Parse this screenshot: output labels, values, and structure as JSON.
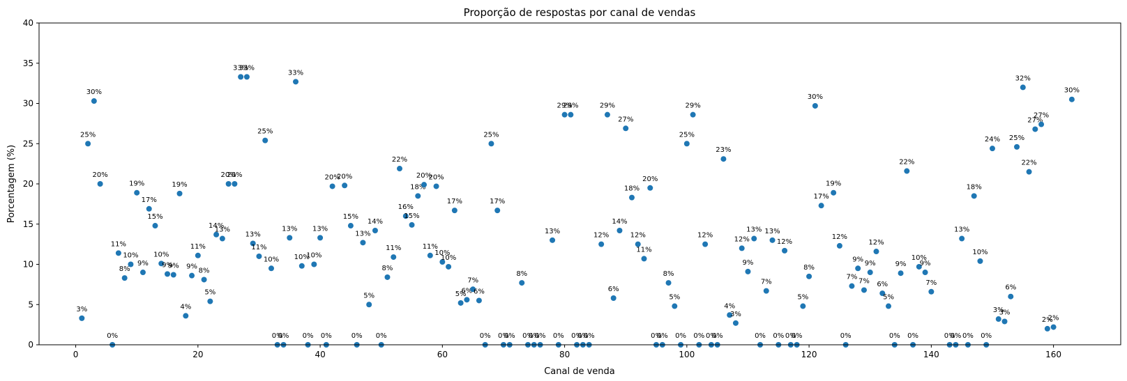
{
  "chart_data": {
    "type": "scatter",
    "title": "Proporção de respostas por canal de vendas",
    "xlabel": "Canal de venda",
    "ylabel": "Porcentagem (%)",
    "xlim": [
      -6,
      171
    ],
    "ylim": [
      0,
      40
    ],
    "xticks": [
      0,
      20,
      40,
      60,
      80,
      100,
      120,
      140,
      160
    ],
    "yticks": [
      0,
      5,
      10,
      15,
      20,
      25,
      30,
      35,
      40
    ],
    "grid": false,
    "color": "#1f77b4",
    "points": [
      {
        "x": 1,
        "y": 3.3,
        "label": "3%"
      },
      {
        "x": 2,
        "y": 25,
        "label": "25%"
      },
      {
        "x": 3,
        "y": 30.3,
        "label": "30%"
      },
      {
        "x": 4,
        "y": 20,
        "label": "20%"
      },
      {
        "x": 6,
        "y": 0,
        "label": "0%"
      },
      {
        "x": 7,
        "y": 11.4,
        "label": "11%"
      },
      {
        "x": 8,
        "y": 8.3,
        "label": "8%"
      },
      {
        "x": 9,
        "y": 10,
        "label": "10%"
      },
      {
        "x": 10,
        "y": 18.9,
        "label": "19%"
      },
      {
        "x": 11,
        "y": 9,
        "label": "9%"
      },
      {
        "x": 12,
        "y": 16.9,
        "label": "17%"
      },
      {
        "x": 13,
        "y": 14.8,
        "label": "15%"
      },
      {
        "x": 14,
        "y": 10.1,
        "label": "10%"
      },
      {
        "x": 15,
        "y": 8.8,
        "label": "9%"
      },
      {
        "x": 16,
        "y": 8.7,
        "label": "9%"
      },
      {
        "x": 17,
        "y": 18.8,
        "label": "19%"
      },
      {
        "x": 18,
        "y": 3.6,
        "label": "4%"
      },
      {
        "x": 19,
        "y": 8.6,
        "label": "9%"
      },
      {
        "x": 20,
        "y": 11.1,
        "label": "11%"
      },
      {
        "x": 21,
        "y": 8.1,
        "label": "8%"
      },
      {
        "x": 22,
        "y": 5.4,
        "label": "5%"
      },
      {
        "x": 23,
        "y": 13.7,
        "label": "14%"
      },
      {
        "x": 24,
        "y": 13.2,
        "label": "13%"
      },
      {
        "x": 25,
        "y": 20,
        "label": "20%"
      },
      {
        "x": 26,
        "y": 20,
        "label": "20%"
      },
      {
        "x": 27,
        "y": 33.3,
        "label": "33%"
      },
      {
        "x": 28,
        "y": 33.3,
        "label": "33%"
      },
      {
        "x": 29,
        "y": 12.6,
        "label": "13%"
      },
      {
        "x": 30,
        "y": 11,
        "label": "11%"
      },
      {
        "x": 31,
        "y": 25.4,
        "label": "25%"
      },
      {
        "x": 32,
        "y": 9.5,
        "label": "10%"
      },
      {
        "x": 33,
        "y": 0,
        "label": "0%"
      },
      {
        "x": 34,
        "y": 0,
        "label": "0%"
      },
      {
        "x": 35,
        "y": 13.3,
        "label": "13%"
      },
      {
        "x": 36,
        "y": 32.7,
        "label": "33%"
      },
      {
        "x": 37,
        "y": 9.8,
        "label": "10%"
      },
      {
        "x": 38,
        "y": 0,
        "label": "0%"
      },
      {
        "x": 39,
        "y": 10,
        "label": "10%"
      },
      {
        "x": 40,
        "y": 13.3,
        "label": "13%"
      },
      {
        "x": 41,
        "y": 0,
        "label": "0%"
      },
      {
        "x": 42,
        "y": 19.7,
        "label": "20%"
      },
      {
        "x": 44,
        "y": 19.8,
        "label": "20%"
      },
      {
        "x": 45,
        "y": 14.8,
        "label": "15%"
      },
      {
        "x": 46,
        "y": 0,
        "label": "0%"
      },
      {
        "x": 47,
        "y": 12.7,
        "label": "13%"
      },
      {
        "x": 48,
        "y": 5,
        "label": "5%"
      },
      {
        "x": 49,
        "y": 14.2,
        "label": "14%"
      },
      {
        "x": 50,
        "y": 0,
        "label": "0%"
      },
      {
        "x": 51,
        "y": 8.4,
        "label": "8%"
      },
      {
        "x": 52,
        "y": 10.9,
        "label": "11%"
      },
      {
        "x": 53,
        "y": 21.9,
        "label": "22%"
      },
      {
        "x": 54,
        "y": 16,
        "label": "16%"
      },
      {
        "x": 55,
        "y": 14.9,
        "label": "15%"
      },
      {
        "x": 56,
        "y": 18.5,
        "label": "18%"
      },
      {
        "x": 57,
        "y": 19.9,
        "label": "20%"
      },
      {
        "x": 58,
        "y": 11.1,
        "label": "11%"
      },
      {
        "x": 59,
        "y": 19.7,
        "label": "20%"
      },
      {
        "x": 60,
        "y": 10.3,
        "label": "10%"
      },
      {
        "x": 61,
        "y": 9.7,
        "label": "10%"
      },
      {
        "x": 62,
        "y": 16.7,
        "label": "17%"
      },
      {
        "x": 63,
        "y": 5.2,
        "label": "5%"
      },
      {
        "x": 64,
        "y": 5.6,
        "label": "6%"
      },
      {
        "x": 65,
        "y": 6.9,
        "label": "7%"
      },
      {
        "x": 66,
        "y": 5.5,
        "label": "6%"
      },
      {
        "x": 67,
        "y": 0,
        "label": "0%"
      },
      {
        "x": 68,
        "y": 25,
        "label": "25%"
      },
      {
        "x": 69,
        "y": 16.7,
        "label": "17%"
      },
      {
        "x": 70,
        "y": 0,
        "label": "0%"
      },
      {
        "x": 71,
        "y": 0,
        "label": "0%"
      },
      {
        "x": 73,
        "y": 7.7,
        "label": "8%"
      },
      {
        "x": 74,
        "y": 0,
        "label": "0%"
      },
      {
        "x": 75,
        "y": 0,
        "label": "0%"
      },
      {
        "x": 76,
        "y": 0,
        "label": "0%"
      },
      {
        "x": 78,
        "y": 13,
        "label": "13%"
      },
      {
        "x": 79,
        "y": 0,
        "label": "0%"
      },
      {
        "x": 80,
        "y": 28.6,
        "label": "29%"
      },
      {
        "x": 81,
        "y": 28.6,
        "label": "29%"
      },
      {
        "x": 82,
        "y": 0,
        "label": "0%"
      },
      {
        "x": 83,
        "y": 0,
        "label": "0%"
      },
      {
        "x": 84,
        "y": 0,
        "label": "0%"
      },
      {
        "x": 86,
        "y": 12.5,
        "label": "12%"
      },
      {
        "x": 87,
        "y": 28.6,
        "label": "29%"
      },
      {
        "x": 88,
        "y": 5.8,
        "label": "6%"
      },
      {
        "x": 89,
        "y": 14.2,
        "label": "14%"
      },
      {
        "x": 90,
        "y": 26.9,
        "label": "27%"
      },
      {
        "x": 91,
        "y": 18.3,
        "label": "18%"
      },
      {
        "x": 92,
        "y": 12.5,
        "label": "12%"
      },
      {
        "x": 93,
        "y": 10.7,
        "label": "11%"
      },
      {
        "x": 94,
        "y": 19.5,
        "label": "20%"
      },
      {
        "x": 95,
        "y": 0,
        "label": "0%"
      },
      {
        "x": 96,
        "y": 0,
        "label": "0%"
      },
      {
        "x": 97,
        "y": 7.7,
        "label": "8%"
      },
      {
        "x": 98,
        "y": 4.8,
        "label": "5%"
      },
      {
        "x": 99,
        "y": 0,
        "label": "0%"
      },
      {
        "x": 100,
        "y": 25,
        "label": "25%"
      },
      {
        "x": 101,
        "y": 28.6,
        "label": "29%"
      },
      {
        "x": 102,
        "y": 0,
        "label": "0%"
      },
      {
        "x": 103,
        "y": 12.5,
        "label": "12%"
      },
      {
        "x": 104,
        "y": 0,
        "label": "0%"
      },
      {
        "x": 105,
        "y": 0,
        "label": "0%"
      },
      {
        "x": 106,
        "y": 23.1,
        "label": "23%"
      },
      {
        "x": 107,
        "y": 3.7,
        "label": "4%"
      },
      {
        "x": 108,
        "y": 2.7,
        "label": "3%"
      },
      {
        "x": 109,
        "y": 12,
        "label": "12%"
      },
      {
        "x": 110,
        "y": 9.1,
        "label": "9%"
      },
      {
        "x": 111,
        "y": 13.2,
        "label": "13%"
      },
      {
        "x": 112,
        "y": 0,
        "label": "0%"
      },
      {
        "x": 113,
        "y": 6.7,
        "label": "7%"
      },
      {
        "x": 114,
        "y": 13,
        "label": "13%"
      },
      {
        "x": 115,
        "y": 0,
        "label": "0%"
      },
      {
        "x": 116,
        "y": 11.7,
        "label": "12%"
      },
      {
        "x": 117,
        "y": 0,
        "label": "0%"
      },
      {
        "x": 118,
        "y": 0,
        "label": "0%"
      },
      {
        "x": 119,
        "y": 4.8,
        "label": "5%"
      },
      {
        "x": 120,
        "y": 8.5,
        "label": "8%"
      },
      {
        "x": 121,
        "y": 29.7,
        "label": "30%"
      },
      {
        "x": 122,
        "y": 17.3,
        "label": "17%"
      },
      {
        "x": 124,
        "y": 18.9,
        "label": "19%"
      },
      {
        "x": 125,
        "y": 12.3,
        "label": "12%"
      },
      {
        "x": 126,
        "y": 0,
        "label": "0%"
      },
      {
        "x": 127,
        "y": 7.3,
        "label": "7%"
      },
      {
        "x": 128,
        "y": 9.5,
        "label": "9%"
      },
      {
        "x": 129,
        "y": 6.8,
        "label": "7%"
      },
      {
        "x": 130,
        "y": 9,
        "label": "9%"
      },
      {
        "x": 131,
        "y": 11.6,
        "label": "12%"
      },
      {
        "x": 132,
        "y": 6.4,
        "label": "6%"
      },
      {
        "x": 133,
        "y": 4.8,
        "label": "5%"
      },
      {
        "x": 134,
        "y": 0,
        "label": "0%"
      },
      {
        "x": 135,
        "y": 8.9,
        "label": "9%"
      },
      {
        "x": 136,
        "y": 21.6,
        "label": "22%"
      },
      {
        "x": 137,
        "y": 0,
        "label": "0%"
      },
      {
        "x": 138,
        "y": 9.7,
        "label": "10%"
      },
      {
        "x": 139,
        "y": 9,
        "label": "9%"
      },
      {
        "x": 140,
        "y": 6.6,
        "label": "7%"
      },
      {
        "x": 143,
        "y": 0,
        "label": "0%"
      },
      {
        "x": 144,
        "y": 0,
        "label": "0%"
      },
      {
        "x": 145,
        "y": 13.2,
        "label": "13%"
      },
      {
        "x": 146,
        "y": 0,
        "label": "0%"
      },
      {
        "x": 147,
        "y": 18.5,
        "label": "18%"
      },
      {
        "x": 148,
        "y": 10.4,
        "label": "10%"
      },
      {
        "x": 149,
        "y": 0,
        "label": "0%"
      },
      {
        "x": 150,
        "y": 24.4,
        "label": "24%"
      },
      {
        "x": 151,
        "y": 3.2,
        "label": "3%"
      },
      {
        "x": 152,
        "y": 2.9,
        "label": "3%"
      },
      {
        "x": 153,
        "y": 6,
        "label": "6%"
      },
      {
        "x": 154,
        "y": 24.6,
        "label": "25%"
      },
      {
        "x": 155,
        "y": 32,
        "label": "32%"
      },
      {
        "x": 156,
        "y": 21.5,
        "label": "22%"
      },
      {
        "x": 157,
        "y": 26.8,
        "label": "27%"
      },
      {
        "x": 158,
        "y": 27.4,
        "label": "27%"
      },
      {
        "x": 159,
        "y": 2,
        "label": "2%"
      },
      {
        "x": 160,
        "y": 2.2,
        "label": "2%"
      },
      {
        "x": 163,
        "y": 30.5,
        "label": "30%"
      }
    ]
  }
}
